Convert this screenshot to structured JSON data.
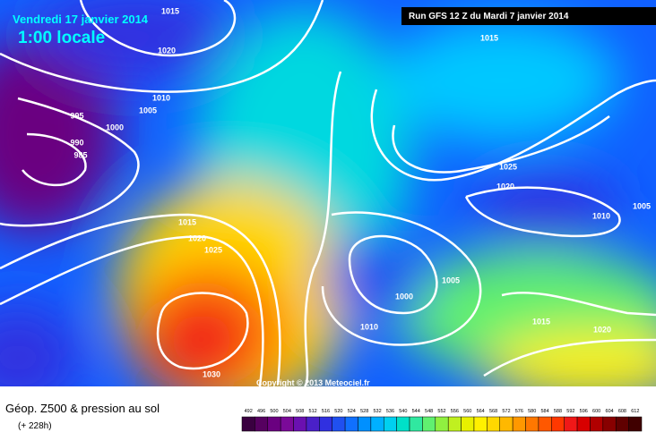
{
  "header": {
    "date": "Vendredi 17 janvier 2014",
    "time": "1:00 locale",
    "run": "Run GFS 12 Z du Mardi 7 janvier 2014"
  },
  "copyright": "Copyright © 2013 Meteociel.fr",
  "isobar_labels": [
    "1015",
    "1020",
    "1010",
    "1005",
    "995",
    "1000",
    "990",
    "985",
    "1015",
    "1025",
    "1020",
    "1010",
    "1005",
    "1015",
    "1020",
    "1025",
    "1000",
    "1005",
    "1010",
    "1015",
    "1020",
    "1030"
  ],
  "legend": {
    "title": "Géop. Z500 & pression au sol",
    "subtitle": "(+ 228h)",
    "values": [
      492,
      496,
      500,
      504,
      508,
      512,
      516,
      520,
      524,
      528,
      532,
      536,
      540,
      544,
      548,
      552,
      556,
      560,
      564,
      568,
      572,
      576,
      580,
      584,
      588,
      592,
      596,
      600,
      604,
      608,
      612
    ],
    "colors": [
      "#3a0040",
      "#560060",
      "#6a0080",
      "#7a0a98",
      "#6a10b0",
      "#4a20c8",
      "#3030e0",
      "#2050f0",
      "#1070ff",
      "#0090ff",
      "#00b0ff",
      "#00d0f0",
      "#00e0c8",
      "#30e8a0",
      "#60f070",
      "#90f040",
      "#c0f020",
      "#e8f000",
      "#fff000",
      "#ffd800",
      "#ffb800",
      "#ff9800",
      "#ff7800",
      "#ff5800",
      "#ff3800",
      "#f01818",
      "#d80000",
      "#b00000",
      "#880000",
      "#600000",
      "#400000"
    ]
  }
}
